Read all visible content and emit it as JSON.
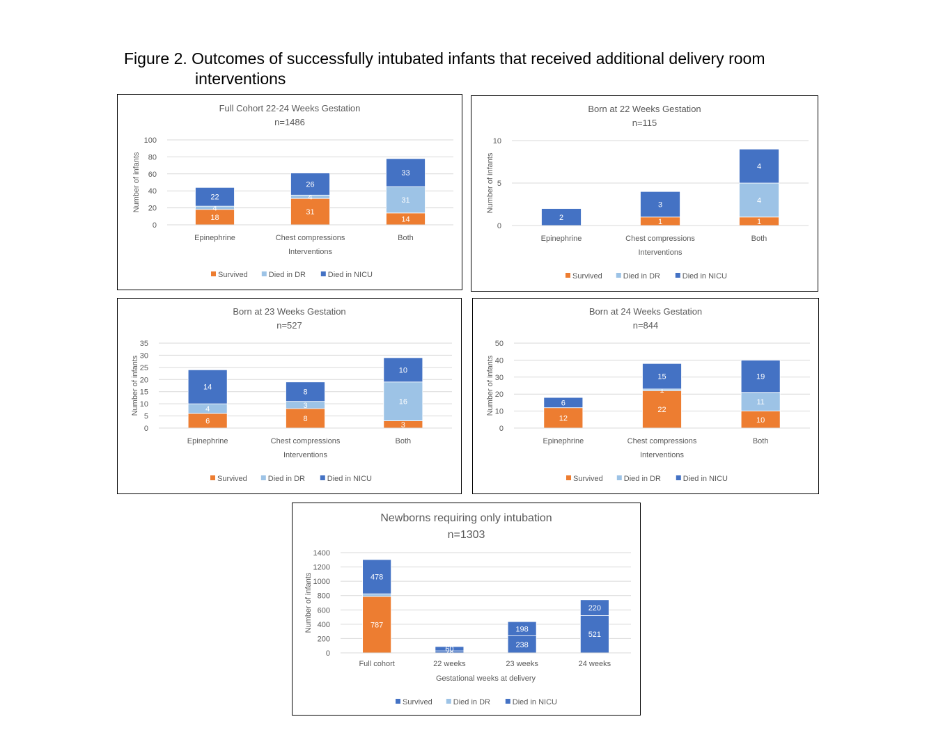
{
  "figure": {
    "title_line1": "Figure 2. Outcomes of successfully intubated infants that received additional delivery room",
    "title_line2": "interventions"
  },
  "colors": {
    "survived": "#ED7D31",
    "died_dr": "#9DC3E6",
    "died_nicu": "#4472C4",
    "grid": "#D9D9D9",
    "text": "#595959"
  },
  "chart_data": [
    {
      "type": "bar",
      "stacked": true,
      "title": "Full Cohort 22-24 Weeks Gestation",
      "subtitle": "n=1486",
      "xlabel": "Interventions",
      "ylabel": "Number of infants",
      "ylim": [
        0,
        100
      ],
      "yticks": [
        0,
        20,
        40,
        60,
        80,
        100
      ],
      "categories": [
        "Epinephrine",
        "Chest compressions",
        "Both"
      ],
      "series": [
        {
          "name": "Survived",
          "values": [
            18,
            31,
            14
          ],
          "labels": [
            "18",
            "31",
            "14"
          ],
          "color": "#ED7D31"
        },
        {
          "name": "Died in DR",
          "values": [
            4,
            4,
            31
          ],
          "labels": [
            "4",
            "4",
            "31"
          ],
          "color": "#9DC3E6"
        },
        {
          "name": "Died in NICU",
          "values": [
            22,
            26,
            33
          ],
          "labels": [
            "22",
            "26",
            "33"
          ],
          "color": "#4472C4"
        }
      ],
      "legend": "bottom",
      "grid": true
    },
    {
      "type": "bar",
      "stacked": true,
      "title": "Born at 22 Weeks Gestation",
      "subtitle": "n=115",
      "xlabel": "Interventions",
      "ylabel": "Number of infants",
      "ylim": [
        0,
        10
      ],
      "yticks": [
        0,
        5,
        10
      ],
      "categories": [
        "Epinephrine",
        "Chest compressions",
        "Both"
      ],
      "series": [
        {
          "name": "Survived",
          "values": [
            0,
            1,
            1
          ],
          "labels": [
            "",
            "1",
            "1"
          ],
          "color": "#ED7D31"
        },
        {
          "name": "Died in DR",
          "values": [
            0,
            0,
            4
          ],
          "labels": [
            "",
            "",
            "4"
          ],
          "color": "#9DC3E6"
        },
        {
          "name": "Died in NICU",
          "values": [
            2,
            3,
            4
          ],
          "labels": [
            "2",
            "3",
            "4"
          ],
          "color": "#4472C4"
        }
      ],
      "legend": "bottom",
      "grid": true
    },
    {
      "type": "bar",
      "stacked": true,
      "title": "Born at 23 Weeks Gestation",
      "subtitle": "n=527",
      "xlabel": "Interventions",
      "ylabel": "Number of infants",
      "ylim": [
        0,
        35
      ],
      "yticks": [
        0,
        5,
        10,
        15,
        20,
        25,
        30,
        35
      ],
      "categories": [
        "Epinephrine",
        "Chest compressions",
        "Both"
      ],
      "series": [
        {
          "name": "Survived",
          "values": [
            6,
            8,
            3
          ],
          "labels": [
            "6",
            "8",
            "3"
          ],
          "color": "#ED7D31"
        },
        {
          "name": "Died in DR",
          "values": [
            4,
            3,
            16
          ],
          "labels": [
            "4",
            "3",
            "16"
          ],
          "color": "#9DC3E6"
        },
        {
          "name": "Died in NICU",
          "values": [
            14,
            8,
            10
          ],
          "labels": [
            "14",
            "8",
            "10"
          ],
          "color": "#4472C4"
        }
      ],
      "legend": "bottom",
      "grid": true
    },
    {
      "type": "bar",
      "stacked": true,
      "title": "Born at 24 Weeks Gestation",
      "subtitle": "n=844",
      "xlabel": "Interventions",
      "ylabel": "Number of infants",
      "ylim": [
        0,
        50
      ],
      "yticks": [
        0,
        10,
        20,
        30,
        40,
        50
      ],
      "categories": [
        "Epinephrine",
        "Chest compressions",
        "Both"
      ],
      "series": [
        {
          "name": "Survived",
          "values": [
            12,
            22,
            10
          ],
          "labels": [
            "12",
            "22",
            "10"
          ],
          "color": "#ED7D31"
        },
        {
          "name": "Died in DR",
          "values": [
            0,
            1,
            11
          ],
          "labels": [
            "",
            "1",
            "11"
          ],
          "color": "#9DC3E6"
        },
        {
          "name": "Died in NICU",
          "values": [
            6,
            15,
            19
          ],
          "labels": [
            "6",
            "15",
            "19"
          ],
          "color": "#4472C4"
        }
      ],
      "legend": "bottom",
      "grid": true
    },
    {
      "type": "bar",
      "stacked": true,
      "title": "Newborns requiring only intubation",
      "subtitle": "n=1303",
      "xlabel": "Gestational weeks at delivery",
      "ylabel": "Number of infants",
      "ylim": [
        0,
        1400
      ],
      "yticks": [
        0,
        200,
        400,
        600,
        800,
        1000,
        1200,
        1400
      ],
      "categories": [
        "Full cohort",
        "22 weeks",
        "23 weeks",
        "24 weeks"
      ],
      "series": [
        {
          "name": "Survived",
          "values": [
            787,
            28,
            238,
            521
          ],
          "labels": [
            "787",
            "28",
            "238",
            "521"
          ],
          "color": "#4472C4",
          "bar_colors": [
            "#ED7D31",
            "#4472C4",
            "#4472C4",
            "#4472C4"
          ]
        },
        {
          "name": "Died in DR",
          "values": [
            38,
            0,
            0,
            0
          ],
          "labels": [
            "",
            "",
            "",
            ""
          ],
          "color": "#9DC3E6"
        },
        {
          "name": "Died in NICU",
          "values": [
            478,
            60,
            198,
            220
          ],
          "labels": [
            "478",
            "60",
            "198",
            "220"
          ],
          "color": "#4472C4"
        }
      ],
      "legend": "bottom",
      "grid": true
    }
  ]
}
